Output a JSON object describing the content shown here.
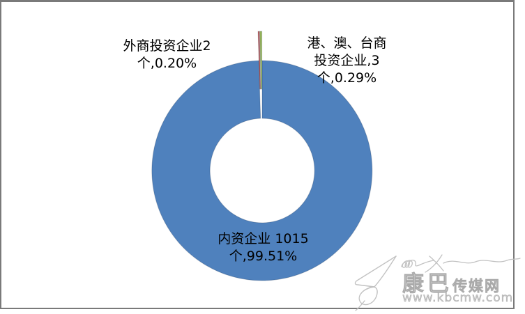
{
  "chart_data": {
    "type": "pie",
    "subtype": "doughnut",
    "title": "",
    "legend_position": "none",
    "unit": "个",
    "categories": [
      "内资企业",
      "外商投资企业",
      "港、澳、台商投资企业"
    ],
    "values": [
      1015,
      2,
      3
    ],
    "percentages": [
      99.51,
      0.2,
      0.29
    ],
    "colors": [
      "#4f81bd",
      "#c0504d",
      "#9bbb59"
    ],
    "exploded": [
      false,
      true,
      true
    ],
    "data_labels": [
      "内资企业 1015个,99.51%",
      "外商投资企业2个,0.20%",
      "港、澳、台商投资企业,3个,0.29%"
    ]
  },
  "labels": {
    "domestic": {
      "lines": [
        "内资企业 1015",
        "个,99.51%"
      ]
    },
    "foreign": {
      "lines": [
        "外商投资企业2",
        "个,0.20%"
      ]
    },
    "hmt": {
      "lines": [
        "港、澳、台商",
        "投资企业,3",
        "个,0.29%"
      ]
    }
  },
  "watermark": {
    "brand_large": "康巴",
    "brand_small": "传媒网",
    "url": "www.kbcmw.com"
  },
  "colors": {
    "slice_domestic": "#4f81bd",
    "slice_foreign": "#c0504d",
    "slice_hmt": "#9bbb59",
    "frame_gray": "#7a7a7a",
    "label_text": "#000000",
    "watermark_gray": "#cbcbcb"
  }
}
